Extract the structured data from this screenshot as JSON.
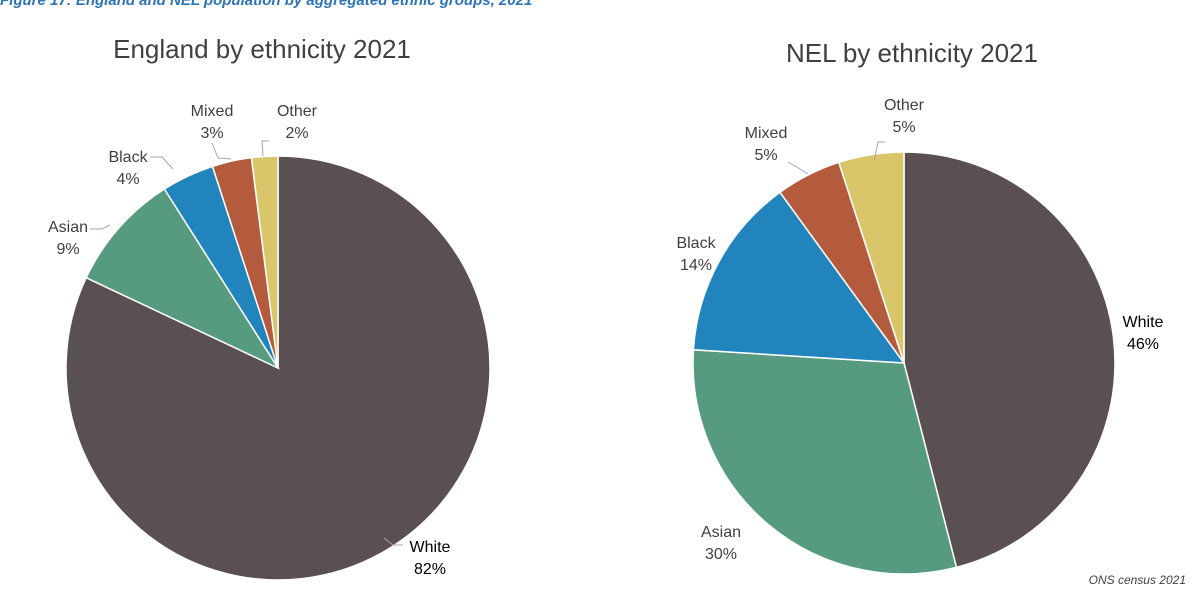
{
  "caption": "Figure 17: England and NEL population by aggregated ethnic groups, 2021",
  "source": "ONS census 2021",
  "chart_data": [
    {
      "type": "pie",
      "title": "England by ethnicity 2021",
      "slices": [
        {
          "name": "White",
          "value": 82,
          "label": "82%",
          "color": "#5a5052"
        },
        {
          "name": "Asian",
          "value": 9,
          "label": "9%",
          "color": "#569b80"
        },
        {
          "name": "Black",
          "value": 4,
          "label": "4%",
          "color": "#2184bd"
        },
        {
          "name": "Mixed",
          "value": 3,
          "label": "3%",
          "color": "#b45b3e"
        },
        {
          "name": "Other",
          "value": 2,
          "label": "2%",
          "color": "#d9c66a"
        }
      ]
    },
    {
      "type": "pie",
      "title": "NEL by ethnicity 2021",
      "slices": [
        {
          "name": "White",
          "value": 46,
          "label": "46%",
          "color": "#5a5052"
        },
        {
          "name": "Asian",
          "value": 30,
          "label": "30%",
          "color": "#569b80"
        },
        {
          "name": "Black",
          "value": 14,
          "label": "14%",
          "color": "#2184bd"
        },
        {
          "name": "Mixed",
          "value": 5,
          "label": "5%",
          "color": "#b45b3e"
        },
        {
          "name": "Other",
          "value": 5,
          "label": "5%",
          "color": "#d9c66a"
        }
      ]
    }
  ]
}
